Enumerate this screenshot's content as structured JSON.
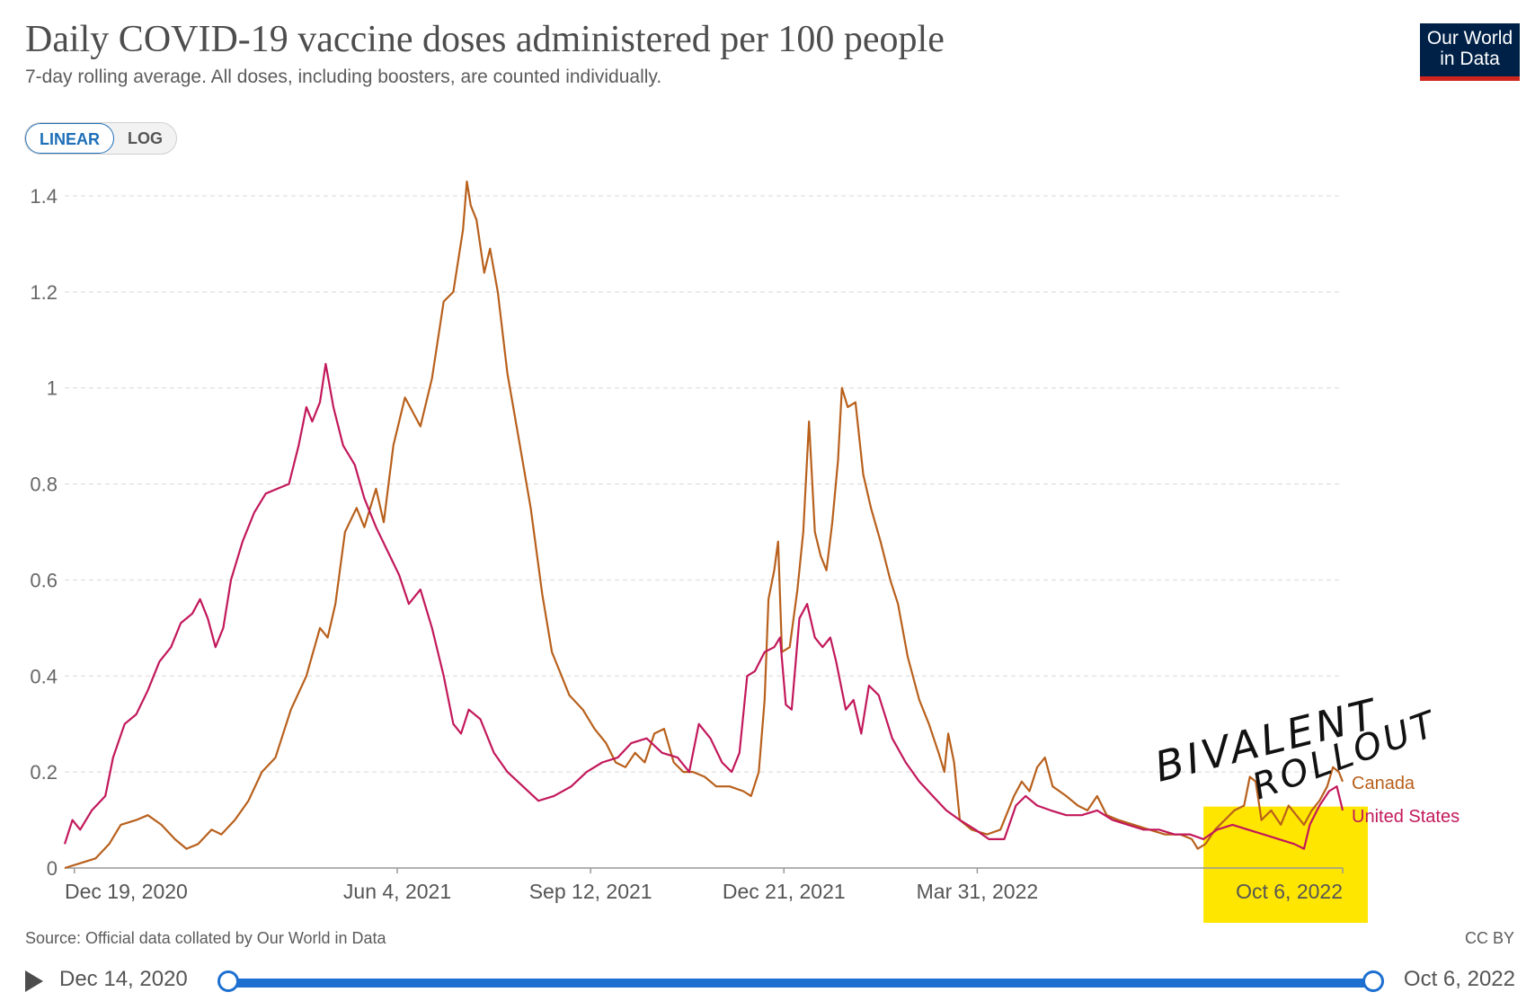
{
  "header": {
    "title": "Daily COVID-19 vaccine doses administered per 100 people",
    "subtitle": "7-day rolling average. All doses, including boosters, are counted individually."
  },
  "logo": {
    "line1": "Our World",
    "line2": "in Data"
  },
  "scale_toggle": {
    "linear_label": "LINEAR",
    "log_label": "LOG",
    "selected": "LINEAR"
  },
  "footer": {
    "source": "Source: Official data collated by Our World in Data",
    "license": "CC BY"
  },
  "timeline": {
    "start_label": "Dec 14, 2020",
    "end_label": "Oct 6, 2022"
  },
  "annotation": {
    "line1": "BIVALENT",
    "line2": "ROLLOUT",
    "highlight_color": "#ffe600"
  },
  "chart_data": {
    "type": "line",
    "x_start": "2020-12-14",
    "x_end": "2022-10-06",
    "x_ticks": [
      {
        "date": "2020-12-19",
        "label": "Dec 19, 2020"
      },
      {
        "date": "2021-06-04",
        "label": "Jun 4, 2021"
      },
      {
        "date": "2021-09-12",
        "label": "Sep 12, 2021"
      },
      {
        "date": "2021-12-21",
        "label": "Dec 21, 2021"
      },
      {
        "date": "2022-03-31",
        "label": "Mar 31, 2022"
      },
      {
        "date": "2022-10-06",
        "label": "Oct 6, 2022"
      }
    ],
    "y_ticks": [
      {
        "value": 0,
        "label": "0"
      },
      {
        "value": 0.2,
        "label": "0.2"
      },
      {
        "value": 0.4,
        "label": "0.4"
      },
      {
        "value": 0.6,
        "label": "0.6"
      },
      {
        "value": 0.8,
        "label": "0.8"
      },
      {
        "value": 1.0,
        "label": "1"
      },
      {
        "value": 1.2,
        "label": "1.2"
      },
      {
        "value": 1.4,
        "label": "1.4"
      }
    ],
    "ylim": [
      0,
      1.4
    ],
    "grid": true,
    "series": [
      {
        "name": "Canada",
        "color": "#b8601c",
        "points": [
          [
            "2020-12-14",
            0.0
          ],
          [
            "2020-12-22",
            0.01
          ],
          [
            "2020-12-30",
            0.02
          ],
          [
            "2021-01-06",
            0.05
          ],
          [
            "2021-01-12",
            0.09
          ],
          [
            "2021-01-20",
            0.1
          ],
          [
            "2021-01-26",
            0.11
          ],
          [
            "2021-02-02",
            0.09
          ],
          [
            "2021-02-09",
            0.06
          ],
          [
            "2021-02-15",
            0.04
          ],
          [
            "2021-02-21",
            0.05
          ],
          [
            "2021-02-28",
            0.08
          ],
          [
            "2021-03-05",
            0.07
          ],
          [
            "2021-03-12",
            0.1
          ],
          [
            "2021-03-19",
            0.14
          ],
          [
            "2021-03-26",
            0.2
          ],
          [
            "2021-04-02",
            0.23
          ],
          [
            "2021-04-10",
            0.33
          ],
          [
            "2021-04-18",
            0.4
          ],
          [
            "2021-04-25",
            0.5
          ],
          [
            "2021-04-29",
            0.48
          ],
          [
            "2021-05-03",
            0.55
          ],
          [
            "2021-05-08",
            0.7
          ],
          [
            "2021-05-14",
            0.75
          ],
          [
            "2021-05-18",
            0.71
          ],
          [
            "2021-05-24",
            0.79
          ],
          [
            "2021-05-28",
            0.72
          ],
          [
            "2021-06-02",
            0.88
          ],
          [
            "2021-06-08",
            0.98
          ],
          [
            "2021-06-12",
            0.95
          ],
          [
            "2021-06-16",
            0.92
          ],
          [
            "2021-06-22",
            1.02
          ],
          [
            "2021-06-28",
            1.18
          ],
          [
            "2021-07-03",
            1.2
          ],
          [
            "2021-07-08",
            1.33
          ],
          [
            "2021-07-10",
            1.43
          ],
          [
            "2021-07-12",
            1.38
          ],
          [
            "2021-07-15",
            1.35
          ],
          [
            "2021-07-19",
            1.24
          ],
          [
            "2021-07-22",
            1.29
          ],
          [
            "2021-07-26",
            1.2
          ],
          [
            "2021-07-31",
            1.03
          ],
          [
            "2021-08-06",
            0.89
          ],
          [
            "2021-08-12",
            0.75
          ],
          [
            "2021-08-18",
            0.57
          ],
          [
            "2021-08-23",
            0.45
          ],
          [
            "2021-08-27",
            0.41
          ],
          [
            "2021-09-01",
            0.36
          ],
          [
            "2021-09-08",
            0.33
          ],
          [
            "2021-09-14",
            0.29
          ],
          [
            "2021-09-20",
            0.26
          ],
          [
            "2021-09-25",
            0.22
          ],
          [
            "2021-09-30",
            0.21
          ],
          [
            "2021-10-05",
            0.24
          ],
          [
            "2021-10-10",
            0.22
          ],
          [
            "2021-10-15",
            0.28
          ],
          [
            "2021-10-20",
            0.29
          ],
          [
            "2021-10-25",
            0.22
          ],
          [
            "2021-10-30",
            0.2
          ],
          [
            "2021-11-04",
            0.2
          ],
          [
            "2021-11-10",
            0.19
          ],
          [
            "2021-11-16",
            0.17
          ],
          [
            "2021-11-23",
            0.17
          ],
          [
            "2021-11-30",
            0.16
          ],
          [
            "2021-12-04",
            0.15
          ],
          [
            "2021-12-08",
            0.2
          ],
          [
            "2021-12-11",
            0.35
          ],
          [
            "2021-12-13",
            0.56
          ],
          [
            "2021-12-16",
            0.62
          ],
          [
            "2021-12-18",
            0.68
          ],
          [
            "2021-12-20",
            0.45
          ],
          [
            "2021-12-24",
            0.46
          ],
          [
            "2021-12-28",
            0.58
          ],
          [
            "2021-12-31",
            0.7
          ],
          [
            "2022-01-03",
            0.93
          ],
          [
            "2022-01-06",
            0.7
          ],
          [
            "2022-01-09",
            0.65
          ],
          [
            "2022-01-12",
            0.62
          ],
          [
            "2022-01-15",
            0.72
          ],
          [
            "2022-01-18",
            0.85
          ],
          [
            "2022-01-20",
            1.0
          ],
          [
            "2022-01-23",
            0.96
          ],
          [
            "2022-01-27",
            0.97
          ],
          [
            "2022-01-31",
            0.82
          ],
          [
            "2022-02-04",
            0.75
          ],
          [
            "2022-02-09",
            0.68
          ],
          [
            "2022-02-14",
            0.6
          ],
          [
            "2022-02-18",
            0.55
          ],
          [
            "2022-02-23",
            0.44
          ],
          [
            "2022-03-01",
            0.35
          ],
          [
            "2022-03-06",
            0.3
          ],
          [
            "2022-03-11",
            0.24
          ],
          [
            "2022-03-14",
            0.2
          ],
          [
            "2022-03-16",
            0.28
          ],
          [
            "2022-03-19",
            0.22
          ],
          [
            "2022-03-22",
            0.1
          ],
          [
            "2022-03-28",
            0.08
          ],
          [
            "2022-04-05",
            0.07
          ],
          [
            "2022-04-12",
            0.08
          ],
          [
            "2022-04-19",
            0.15
          ],
          [
            "2022-04-23",
            0.18
          ],
          [
            "2022-04-27",
            0.16
          ],
          [
            "2022-05-01",
            0.21
          ],
          [
            "2022-05-05",
            0.23
          ],
          [
            "2022-05-09",
            0.17
          ],
          [
            "2022-05-16",
            0.15
          ],
          [
            "2022-05-22",
            0.13
          ],
          [
            "2022-05-27",
            0.12
          ],
          [
            "2022-06-01",
            0.15
          ],
          [
            "2022-06-06",
            0.11
          ],
          [
            "2022-06-12",
            0.1
          ],
          [
            "2022-06-20",
            0.09
          ],
          [
            "2022-06-28",
            0.08
          ],
          [
            "2022-07-06",
            0.07
          ],
          [
            "2022-07-14",
            0.07
          ],
          [
            "2022-07-20",
            0.06
          ],
          [
            "2022-07-23",
            0.04
          ],
          [
            "2022-07-27",
            0.05
          ],
          [
            "2022-08-01",
            0.08
          ],
          [
            "2022-08-06",
            0.1
          ],
          [
            "2022-08-11",
            0.12
          ],
          [
            "2022-08-16",
            0.13
          ],
          [
            "2022-08-19",
            0.19
          ],
          [
            "2022-08-22",
            0.18
          ],
          [
            "2022-08-25",
            0.1
          ],
          [
            "2022-08-30",
            0.12
          ],
          [
            "2022-09-04",
            0.09
          ],
          [
            "2022-09-08",
            0.13
          ],
          [
            "2022-09-12",
            0.11
          ],
          [
            "2022-09-16",
            0.09
          ],
          [
            "2022-09-20",
            0.12
          ],
          [
            "2022-09-24",
            0.14
          ],
          [
            "2022-09-28",
            0.17
          ],
          [
            "2022-10-01",
            0.21
          ],
          [
            "2022-10-04",
            0.2
          ],
          [
            "2022-10-06",
            0.18
          ]
        ]
      },
      {
        "name": "United States",
        "color": "#c2185b",
        "points": [
          [
            "2020-12-14",
            0.05
          ],
          [
            "2020-12-18",
            0.1
          ],
          [
            "2020-12-22",
            0.08
          ],
          [
            "2020-12-28",
            0.12
          ],
          [
            "2021-01-04",
            0.15
          ],
          [
            "2021-01-08",
            0.23
          ],
          [
            "2021-01-14",
            0.3
          ],
          [
            "2021-01-20",
            0.32
          ],
          [
            "2021-01-26",
            0.37
          ],
          [
            "2021-02-01",
            0.43
          ],
          [
            "2021-02-07",
            0.46
          ],
          [
            "2021-02-12",
            0.51
          ],
          [
            "2021-02-18",
            0.53
          ],
          [
            "2021-02-22",
            0.56
          ],
          [
            "2021-02-26",
            0.52
          ],
          [
            "2021-03-02",
            0.46
          ],
          [
            "2021-03-06",
            0.5
          ],
          [
            "2021-03-10",
            0.6
          ],
          [
            "2021-03-16",
            0.68
          ],
          [
            "2021-03-22",
            0.74
          ],
          [
            "2021-03-28",
            0.78
          ],
          [
            "2021-04-03",
            0.79
          ],
          [
            "2021-04-09",
            0.8
          ],
          [
            "2021-04-14",
            0.88
          ],
          [
            "2021-04-18",
            0.96
          ],
          [
            "2021-04-21",
            0.93
          ],
          [
            "2021-04-25",
            0.97
          ],
          [
            "2021-04-28",
            1.05
          ],
          [
            "2021-05-02",
            0.96
          ],
          [
            "2021-05-07",
            0.88
          ],
          [
            "2021-05-13",
            0.84
          ],
          [
            "2021-05-18",
            0.77
          ],
          [
            "2021-05-24",
            0.71
          ],
          [
            "2021-05-30",
            0.66
          ],
          [
            "2021-06-05",
            0.61
          ],
          [
            "2021-06-10",
            0.55
          ],
          [
            "2021-06-16",
            0.58
          ],
          [
            "2021-06-22",
            0.5
          ],
          [
            "2021-06-28",
            0.4
          ],
          [
            "2021-07-03",
            0.3
          ],
          [
            "2021-07-07",
            0.28
          ],
          [
            "2021-07-11",
            0.33
          ],
          [
            "2021-07-17",
            0.31
          ],
          [
            "2021-07-24",
            0.24
          ],
          [
            "2021-07-31",
            0.2
          ],
          [
            "2021-08-08",
            0.17
          ],
          [
            "2021-08-16",
            0.14
          ],
          [
            "2021-08-24",
            0.15
          ],
          [
            "2021-09-02",
            0.17
          ],
          [
            "2021-09-10",
            0.2
          ],
          [
            "2021-09-18",
            0.22
          ],
          [
            "2021-09-26",
            0.23
          ],
          [
            "2021-10-03",
            0.26
          ],
          [
            "2021-10-11",
            0.27
          ],
          [
            "2021-10-19",
            0.24
          ],
          [
            "2021-10-27",
            0.23
          ],
          [
            "2021-11-02",
            0.2
          ],
          [
            "2021-11-07",
            0.3
          ],
          [
            "2021-11-13",
            0.27
          ],
          [
            "2021-11-19",
            0.22
          ],
          [
            "2021-11-24",
            0.2
          ],
          [
            "2021-11-28",
            0.24
          ],
          [
            "2021-12-02",
            0.4
          ],
          [
            "2021-12-06",
            0.41
          ],
          [
            "2021-12-11",
            0.45
          ],
          [
            "2021-12-16",
            0.46
          ],
          [
            "2021-12-19",
            0.48
          ],
          [
            "2021-12-22",
            0.34
          ],
          [
            "2021-12-25",
            0.33
          ],
          [
            "2021-12-29",
            0.52
          ],
          [
            "2022-01-02",
            0.55
          ],
          [
            "2022-01-06",
            0.48
          ],
          [
            "2022-01-10",
            0.46
          ],
          [
            "2022-01-14",
            0.48
          ],
          [
            "2022-01-17",
            0.43
          ],
          [
            "2022-01-22",
            0.33
          ],
          [
            "2022-01-26",
            0.35
          ],
          [
            "2022-01-30",
            0.28
          ],
          [
            "2022-02-03",
            0.38
          ],
          [
            "2022-02-08",
            0.36
          ],
          [
            "2022-02-15",
            0.27
          ],
          [
            "2022-02-22",
            0.22
          ],
          [
            "2022-03-01",
            0.18
          ],
          [
            "2022-03-08",
            0.15
          ],
          [
            "2022-03-15",
            0.12
          ],
          [
            "2022-03-22",
            0.1
          ],
          [
            "2022-03-30",
            0.08
          ],
          [
            "2022-04-06",
            0.06
          ],
          [
            "2022-04-14",
            0.06
          ],
          [
            "2022-04-20",
            0.13
          ],
          [
            "2022-04-25",
            0.15
          ],
          [
            "2022-05-01",
            0.13
          ],
          [
            "2022-05-08",
            0.12
          ],
          [
            "2022-05-16",
            0.11
          ],
          [
            "2022-05-24",
            0.11
          ],
          [
            "2022-06-01",
            0.12
          ],
          [
            "2022-06-09",
            0.1
          ],
          [
            "2022-06-17",
            0.09
          ],
          [
            "2022-06-25",
            0.08
          ],
          [
            "2022-07-03",
            0.08
          ],
          [
            "2022-07-11",
            0.07
          ],
          [
            "2022-07-19",
            0.07
          ],
          [
            "2022-07-26",
            0.06
          ],
          [
            "2022-08-02",
            0.08
          ],
          [
            "2022-08-10",
            0.09
          ],
          [
            "2022-08-18",
            0.08
          ],
          [
            "2022-08-26",
            0.07
          ],
          [
            "2022-09-03",
            0.06
          ],
          [
            "2022-09-11",
            0.05
          ],
          [
            "2022-09-16",
            0.04
          ],
          [
            "2022-09-19",
            0.09
          ],
          [
            "2022-09-24",
            0.13
          ],
          [
            "2022-09-29",
            0.16
          ],
          [
            "2022-10-03",
            0.17
          ],
          [
            "2022-10-06",
            0.12
          ]
        ]
      }
    ]
  }
}
